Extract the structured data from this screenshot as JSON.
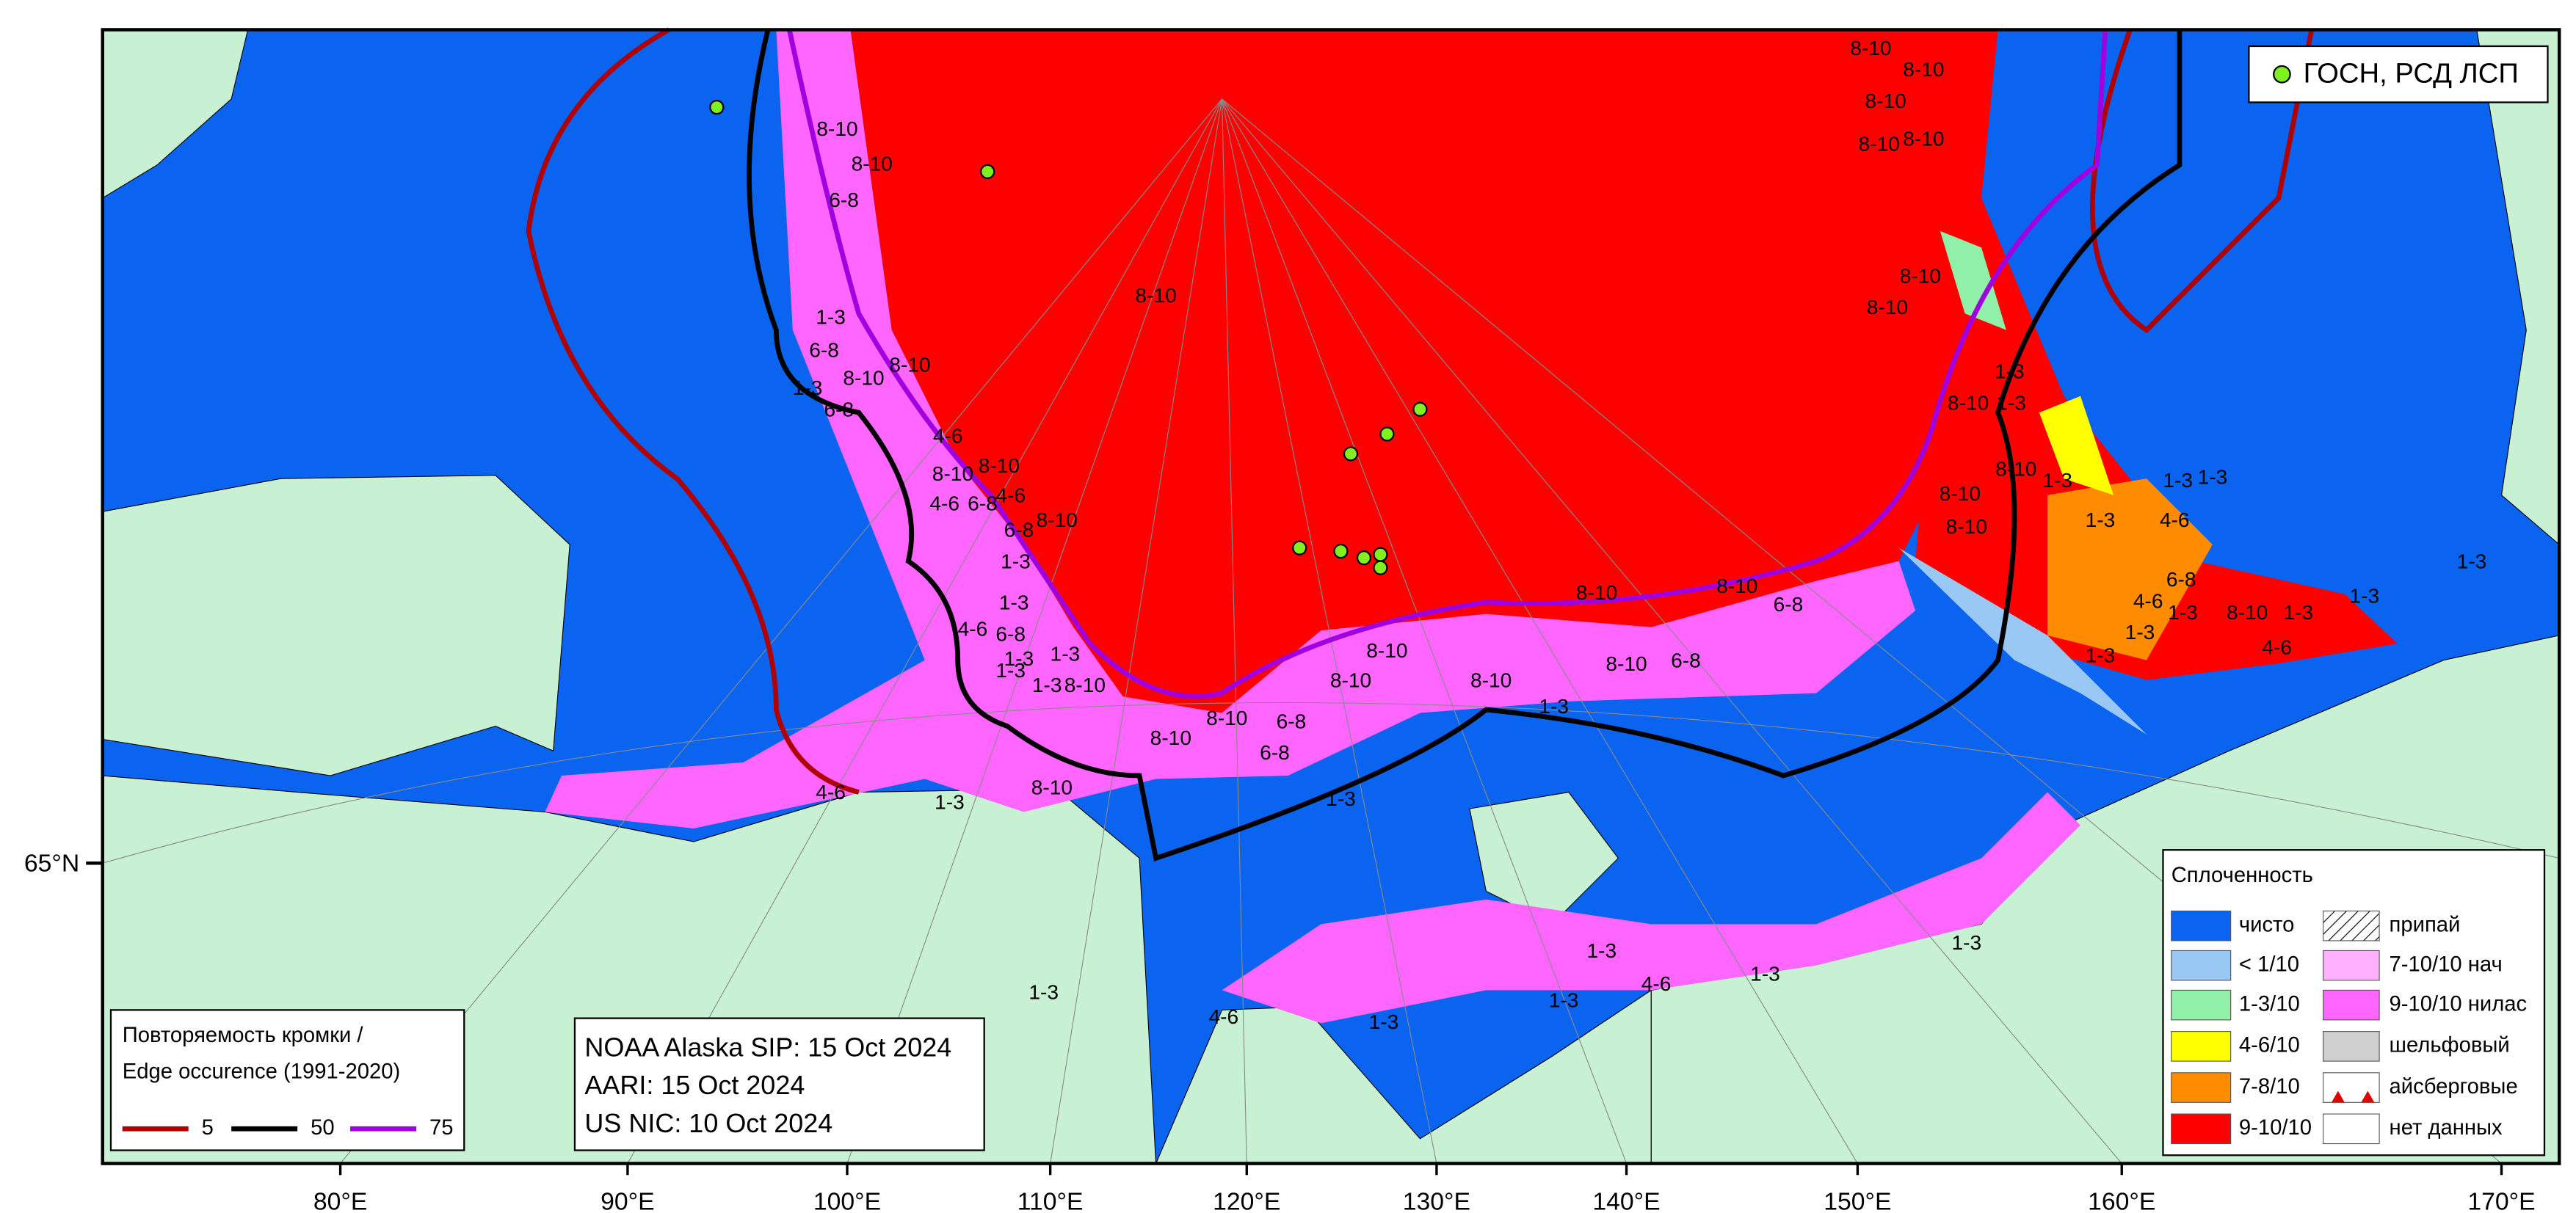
{
  "point_legend": {
    "label": "ГОСН, РСД ЛСП"
  },
  "concentration_legend": {
    "title": "Сплоченность",
    "left_items": [
      "чисто",
      "< 1/10",
      "1-3/10",
      "4-6/10",
      "7-8/10",
      "9-10/10"
    ],
    "right_items": [
      "припай",
      "7-10/10 нач",
      "9-10/10 нилас",
      "шельфовый",
      "айсберговые",
      "нет данных"
    ]
  },
  "edge_legend": {
    "title_lines": [
      "Повторяемость кромки /",
      "Edge occurence (1991-2020)"
    ],
    "items": [
      "5",
      "50",
      "75"
    ]
  },
  "sources": [
    "NOAA Alaska SIP: 15 Oct 2024",
    "AARI: 15 Oct 2024",
    "US NIC: 10 Oct 2024"
  ],
  "lon_labels": [
    "80°E",
    "90°E",
    "100°E",
    "110°E",
    "120°E",
    "130°E",
    "140°E",
    "150°E",
    "160°E",
    "170°E"
  ],
  "lat_labels": [
    "65°N"
  ],
  "ice_labels": [
    "8-10",
    "8-10",
    "8-10",
    "8-10",
    "8-10",
    "8-10",
    "8-10",
    "6-8",
    "8-10",
    "8-10",
    "8-10",
    "1-3",
    "8-10",
    "6-8",
    "8-10",
    "1-3",
    "6-8",
    "1-3",
    "8-10",
    "1-3",
    "4-6",
    "8-10",
    "8-10",
    "4-6",
    "4-6",
    "6-8",
    "8-10",
    "6-8",
    "1-3",
    "8-10",
    "8-10",
    "1-3",
    "1-3",
    "1-3",
    "1-3",
    "4-6",
    "8-10",
    "8-10",
    "6-8",
    "8-10",
    "6-8",
    "4-6",
    "1-3",
    "8-10",
    "1-3",
    "1-3",
    "4-6",
    "1-3",
    "1-3",
    "1-3",
    "8-10",
    "8-10",
    "8-10",
    "8-10",
    "6-8",
    "1-3",
    "8-10",
    "6-8",
    "8-10",
    "6-8",
    "1-3",
    "4-6",
    "6-8",
    "1-3",
    "1-3",
    "1-3",
    "1-3",
    "8-10",
    "4-6",
    "8-10",
    "1-3",
    "1-3",
    "1-3",
    "4-6",
    "1-3",
    "1-3",
    "1-3",
    "4-6",
    "1-3",
    "1-3"
  ]
}
